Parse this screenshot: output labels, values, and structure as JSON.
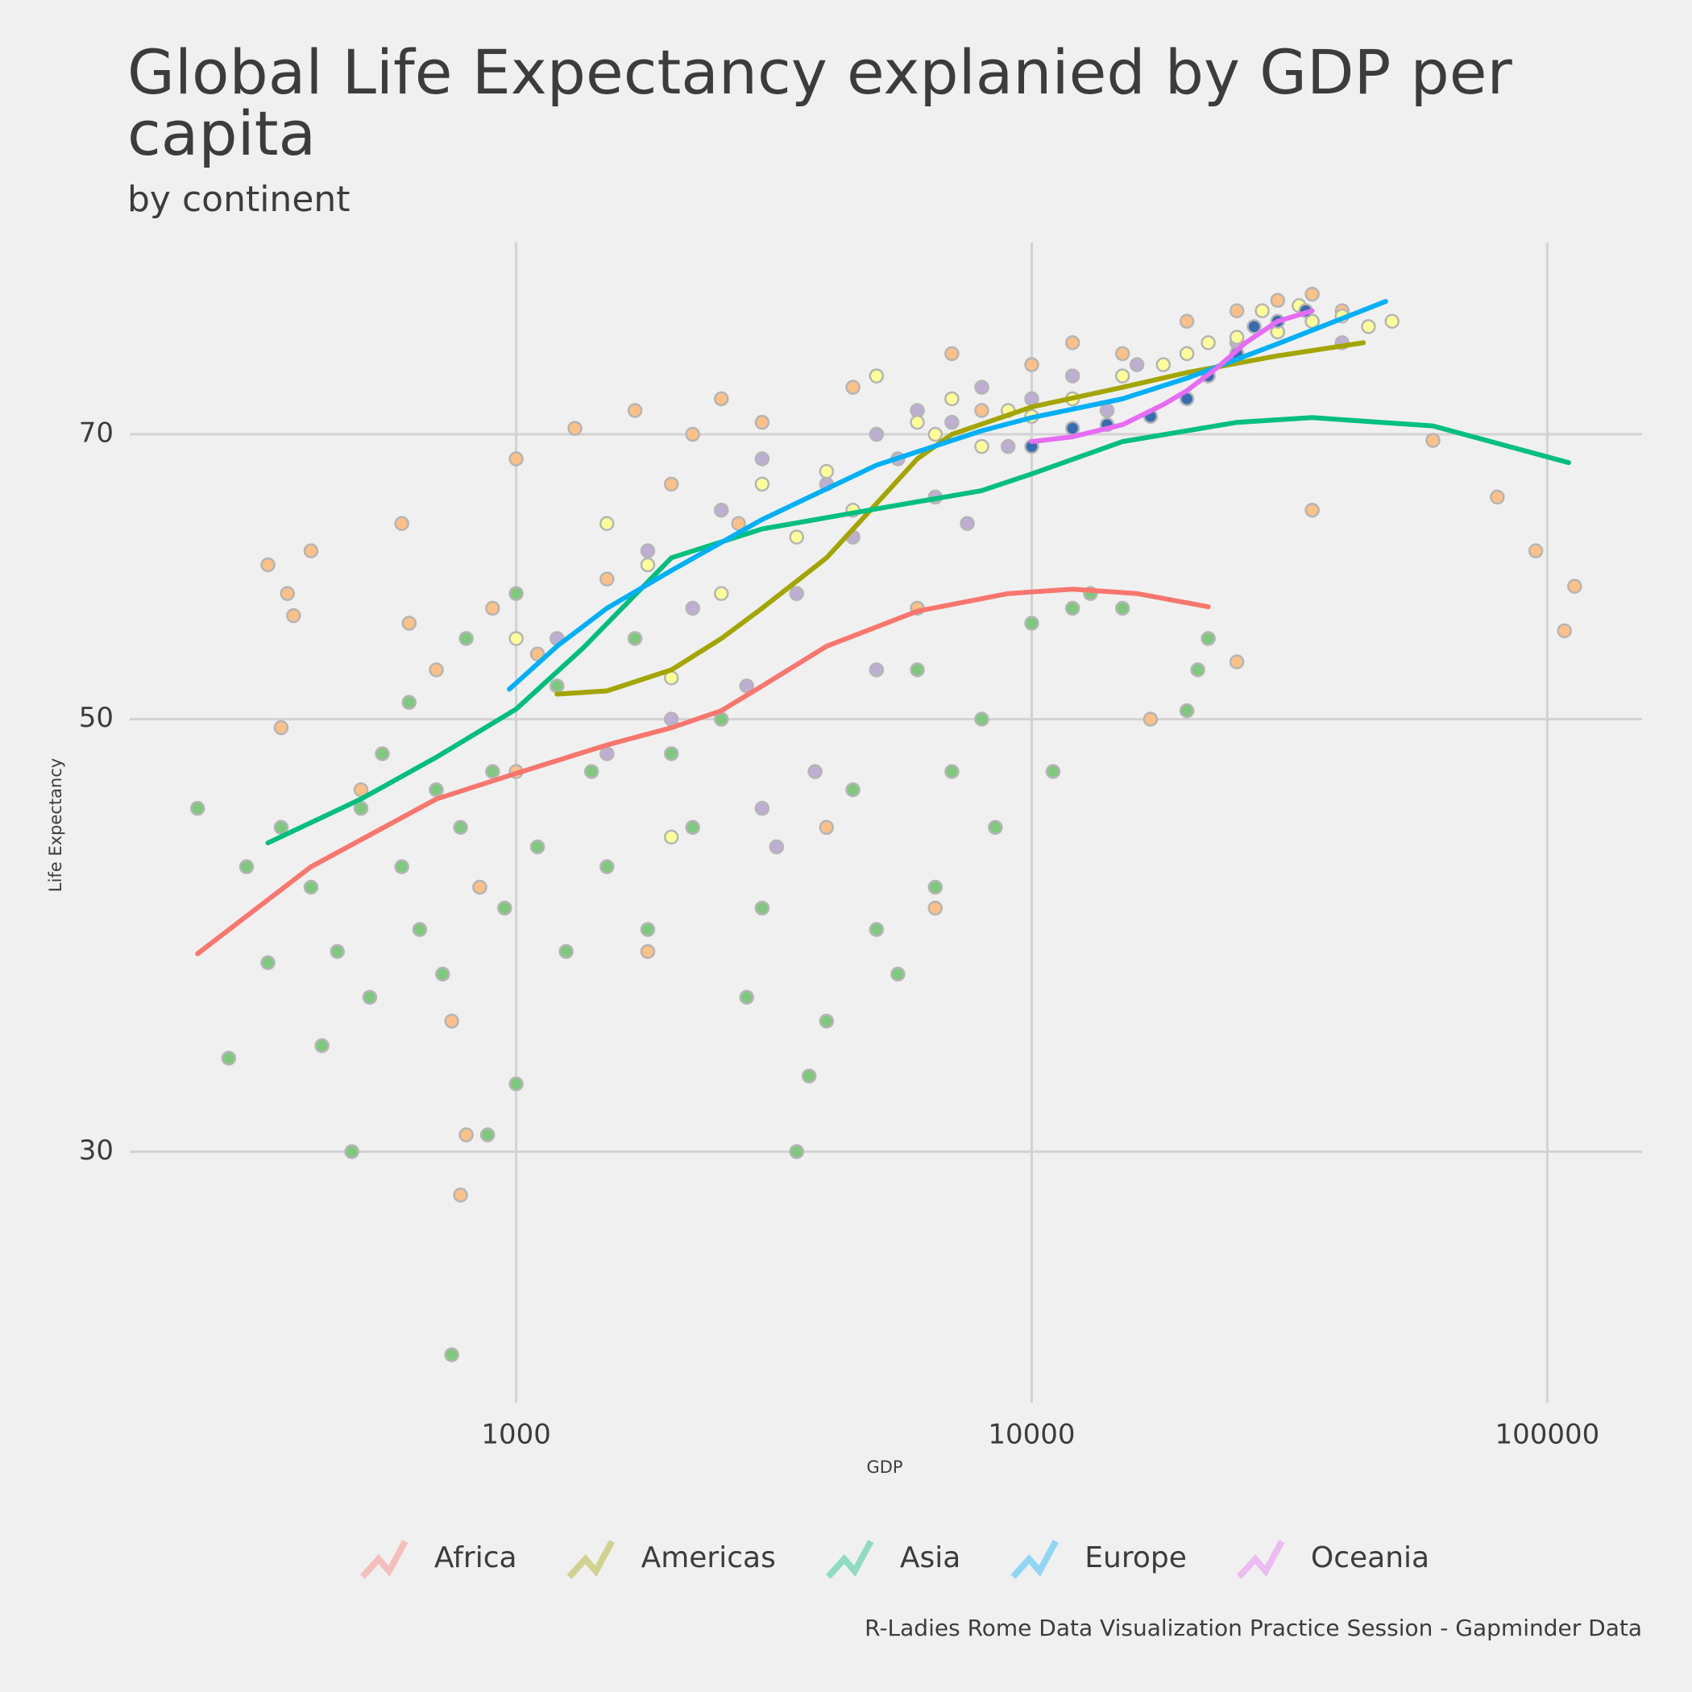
{
  "chart_data": {
    "type": "scatter",
    "title": "Global Life Expectancy explanied by GDP per capita",
    "subtitle": "by continent",
    "x_label": "GDP",
    "y_label": "Life Expectancy",
    "caption": "R-Ladies Rome Data Visualization Practice Session - Gapminder Data",
    "xscale": "log",
    "yscale": "log",
    "xlim": [
      178,
      152700
    ],
    "ylim": [
      22.3,
      87.8
    ],
    "xticks": [
      1000,
      10000,
      100000
    ],
    "yticks": [
      30,
      50,
      70
    ],
    "grid": true,
    "legend": "bottom",
    "series": [
      {
        "name": "Africa",
        "color": "#F8766D",
        "point_color": "#7fc97f",
        "x": [
          241,
          277,
          300,
          330,
          350,
          400,
          420,
          450,
          480,
          500,
          520,
          550,
          600,
          620,
          650,
          700,
          720,
          750,
          780,
          800,
          850,
          880,
          900,
          950,
          1000,
          1000,
          1100,
          1200,
          1250,
          1400,
          1500,
          1700,
          1800,
          2000,
          2200,
          2500,
          2800,
          3000,
          3500,
          3700,
          4000,
          4500,
          5000,
          5500,
          6000,
          6500,
          7000,
          8000,
          8500,
          10000,
          11000,
          12000,
          13000,
          15000,
          20000,
          22000,
          21000
        ],
        "values": [
          45,
          33.5,
          42,
          37.5,
          44,
          41,
          34,
          38,
          30,
          45,
          36,
          48,
          42,
          51,
          39,
          46,
          37,
          23.6,
          44,
          55,
          41,
          30.6,
          47,
          40,
          58,
          32.5,
          43,
          52,
          38,
          47,
          42,
          55,
          39,
          48,
          44,
          50,
          36,
          40,
          30,
          32.8,
          35,
          46,
          39,
          37,
          53,
          41,
          47,
          50,
          44,
          56,
          47,
          57,
          58,
          57,
          50.5,
          55,
          53
        ],
        "trend_x": [
          241,
          400,
          700,
          1000,
          1500,
          2000,
          2500,
          3000,
          4000,
          6000,
          9000,
          12000,
          16000,
          22000
        ],
        "trend_values": [
          37.9,
          42,
          45.5,
          46.9,
          48.5,
          49.5,
          50.5,
          52,
          54.5,
          56.8,
          58,
          58.3,
          58,
          57.1
        ]
      },
      {
        "name": "Americas",
        "color": "#A3A500",
        "point_color": "#beaed4",
        "x": [
          1200,
          1500,
          1800,
          2000,
          2200,
          2500,
          2800,
          3000,
          3000,
          3200,
          3500,
          3800,
          4000,
          4500,
          5000,
          5000,
          5500,
          6000,
          6500,
          7000,
          7500,
          8000,
          9000,
          10000,
          12000,
          14000,
          16000,
          20000,
          25000,
          30000,
          35000,
          40000
        ],
        "values": [
          55,
          48,
          61,
          50,
          57,
          64,
          52,
          45,
          68,
          43,
          58,
          47,
          66,
          62,
          70,
          53,
          68,
          72,
          65,
          71,
          63,
          74,
          69,
          73,
          75,
          72,
          76,
          77,
          78,
          79,
          80,
          78
        ],
        "trend_x": [
          1200,
          1500,
          2000,
          2500,
          3000,
          4000,
          5000,
          6000,
          7000,
          10000,
          15000,
          20000,
          30000,
          44000
        ],
        "trend_values": [
          51.5,
          51.7,
          53,
          55,
          57,
          60.5,
          64.5,
          68,
          70,
          72.3,
          74,
          75.3,
          76.8,
          78
        ]
      },
      {
        "name": "Asia",
        "color": "#00BF7D",
        "point_color": "#fdc086",
        "x": [
          330,
          350,
          360,
          370,
          400,
          500,
          600,
          620,
          700,
          750,
          780,
          800,
          850,
          900,
          1000,
          1000,
          1100,
          1300,
          1500,
          1700,
          1800,
          2000,
          2200,
          2500,
          2700,
          3000,
          4000,
          4500,
          5000,
          6000,
          6500,
          7000,
          8000,
          10000,
          12000,
          15000,
          20000,
          25000,
          30000,
          35000,
          40000,
          60000,
          80000,
          95000,
          108000,
          113000,
          25000,
          35000,
          17000
        ],
        "values": [
          60,
          49.5,
          58,
          56.5,
          61,
          46,
          63,
          56,
          53,
          35,
          28.5,
          30.6,
          41,
          57,
          68,
          47,
          54,
          70.5,
          59,
          72,
          38,
          66,
          70,
          73,
          63,
          71,
          44,
          74,
          75,
          57,
          40,
          77,
          72,
          76,
          78,
          77,
          80,
          81,
          82,
          82.6,
          81,
          69.5,
          65,
          61,
          55.5,
          58.5,
          53.5,
          64,
          50
        ],
        "trend_x": [
          330,
          500,
          700,
          1000,
          1350,
          2000,
          3000,
          5000,
          8000,
          10000,
          15000,
          25000,
          35000,
          60000,
          110000
        ],
        "trend_values": [
          43.2,
          45.5,
          47.8,
          50.6,
          54.4,
          60.5,
          62.6,
          64.1,
          65.5,
          66.8,
          69.4,
          71,
          71.4,
          70.7,
          67.7
        ]
      },
      {
        "name": "Europe",
        "color": "#00B0F6",
        "point_color": "#ffff99",
        "x": [
          1000,
          1500,
          1800,
          2000,
          2000,
          2500,
          3000,
          3500,
          4000,
          4500,
          5000,
          6000,
          6500,
          7000,
          8000,
          9000,
          10000,
          12000,
          15000,
          18000,
          20000,
          22000,
          25000,
          30000,
          35000,
          40000,
          45000,
          50000,
          28000,
          33000
        ],
        "values": [
          55,
          63,
          60,
          52.5,
          43.5,
          58,
          66,
          62,
          67,
          64,
          75,
          71,
          70,
          73,
          69,
          72,
          71.5,
          73,
          75,
          76,
          77,
          78,
          78.5,
          79,
          80,
          80.5,
          79.5,
          80,
          81,
          81.5
        ],
        "trend_x": [
          970,
          1200,
          1500,
          2000,
          3000,
          5000,
          8000,
          10000,
          15000,
          20000,
          30000,
          48600
        ],
        "trend_values": [
          51.8,
          54.5,
          57,
          59.6,
          63.3,
          67.5,
          70.3,
          71.4,
          73,
          74.8,
          77.9,
          81.9
        ]
      },
      {
        "name": "Oceania",
        "color": "#E76BF3",
        "point_color": "#386cb0",
        "x": [
          10000,
          12000,
          14000,
          17000,
          20000,
          22000,
          25000,
          27000,
          30000,
          34000
        ],
        "values": [
          69,
          70.5,
          70.8,
          71.5,
          73,
          75,
          77,
          79.5,
          80,
          81
        ],
        "trend_x": [
          10000,
          12000,
          15000,
          18000,
          20000,
          23000,
          26000,
          30000,
          35000
        ],
        "trend_values": [
          69.4,
          69.8,
          70.8,
          72.5,
          73.7,
          75.8,
          78,
          80,
          81
        ]
      }
    ]
  }
}
